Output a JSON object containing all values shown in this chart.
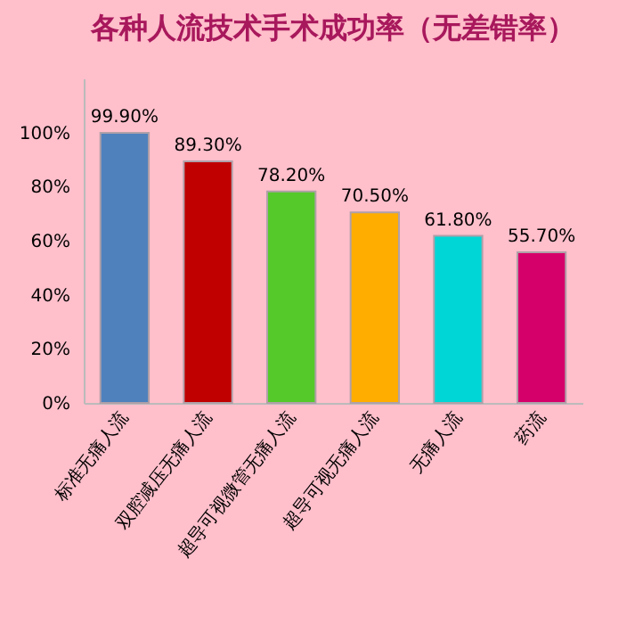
{
  "chart_data": {
    "type": "bar",
    "title": "各种人流技术手术成功率（无差错率）",
    "categories": [
      "标准无痛人流",
      "双腔减压无痛人流",
      "超导可视微管无痛人流",
      "超导可视无痛人流",
      "无痛人流",
      "药流"
    ],
    "values": [
      99.9,
      89.3,
      78.2,
      70.5,
      61.8,
      55.7
    ],
    "colors": [
      "#4f81bd",
      "#c00000",
      "#55c92a",
      "#ffae00",
      "#00d6d6",
      "#d6006a"
    ],
    "value_labels": [
      "99.90%",
      "89.30%",
      "78.20%",
      "70.50%",
      "61.80%",
      "55.70%"
    ],
    "ylim": [
      0,
      120
    ],
    "yticks": [
      {
        "value": 0,
        "label": "0%"
      },
      {
        "value": 20,
        "label": "20%"
      },
      {
        "value": 40,
        "label": "40%"
      },
      {
        "value": 60,
        "label": "60%"
      },
      {
        "value": 80,
        "label": "80%"
      },
      {
        "value": 100,
        "label": "100%"
      }
    ],
    "grid": false
  }
}
